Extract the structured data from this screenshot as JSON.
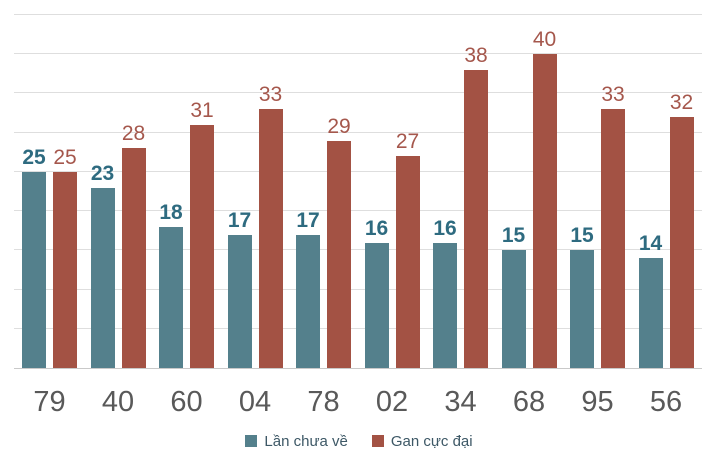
{
  "chart_data": {
    "type": "bar",
    "title": "",
    "xlabel": "",
    "ylabel": "",
    "categories": [
      "79",
      "40",
      "60",
      "04",
      "78",
      "02",
      "34",
      "68",
      "95",
      "56"
    ],
    "series": [
      {
        "name": "Lần chưa về",
        "color": "#54808c",
        "label_color": "#2e6b80",
        "values": [
          25,
          23,
          18,
          17,
          17,
          16,
          16,
          15,
          15,
          14
        ]
      },
      {
        "name": "Gan cực đại",
        "color": "#a35244",
        "label_color": "#a5574c",
        "values": [
          25,
          28,
          31,
          33,
          29,
          27,
          38,
          40,
          33,
          32
        ]
      }
    ],
    "ylim": [
      0,
      45
    ],
    "grid_step": 5,
    "grid": "horizontal-only",
    "y_axis_labels_visible": false,
    "legend_position": "bottom-center"
  },
  "colors": {
    "background": "#ffffff",
    "grid_line": "#dedede",
    "axis_line": "#c9c9c9",
    "x_axis_label": "#595959",
    "legend_text": "#3d5866"
  }
}
